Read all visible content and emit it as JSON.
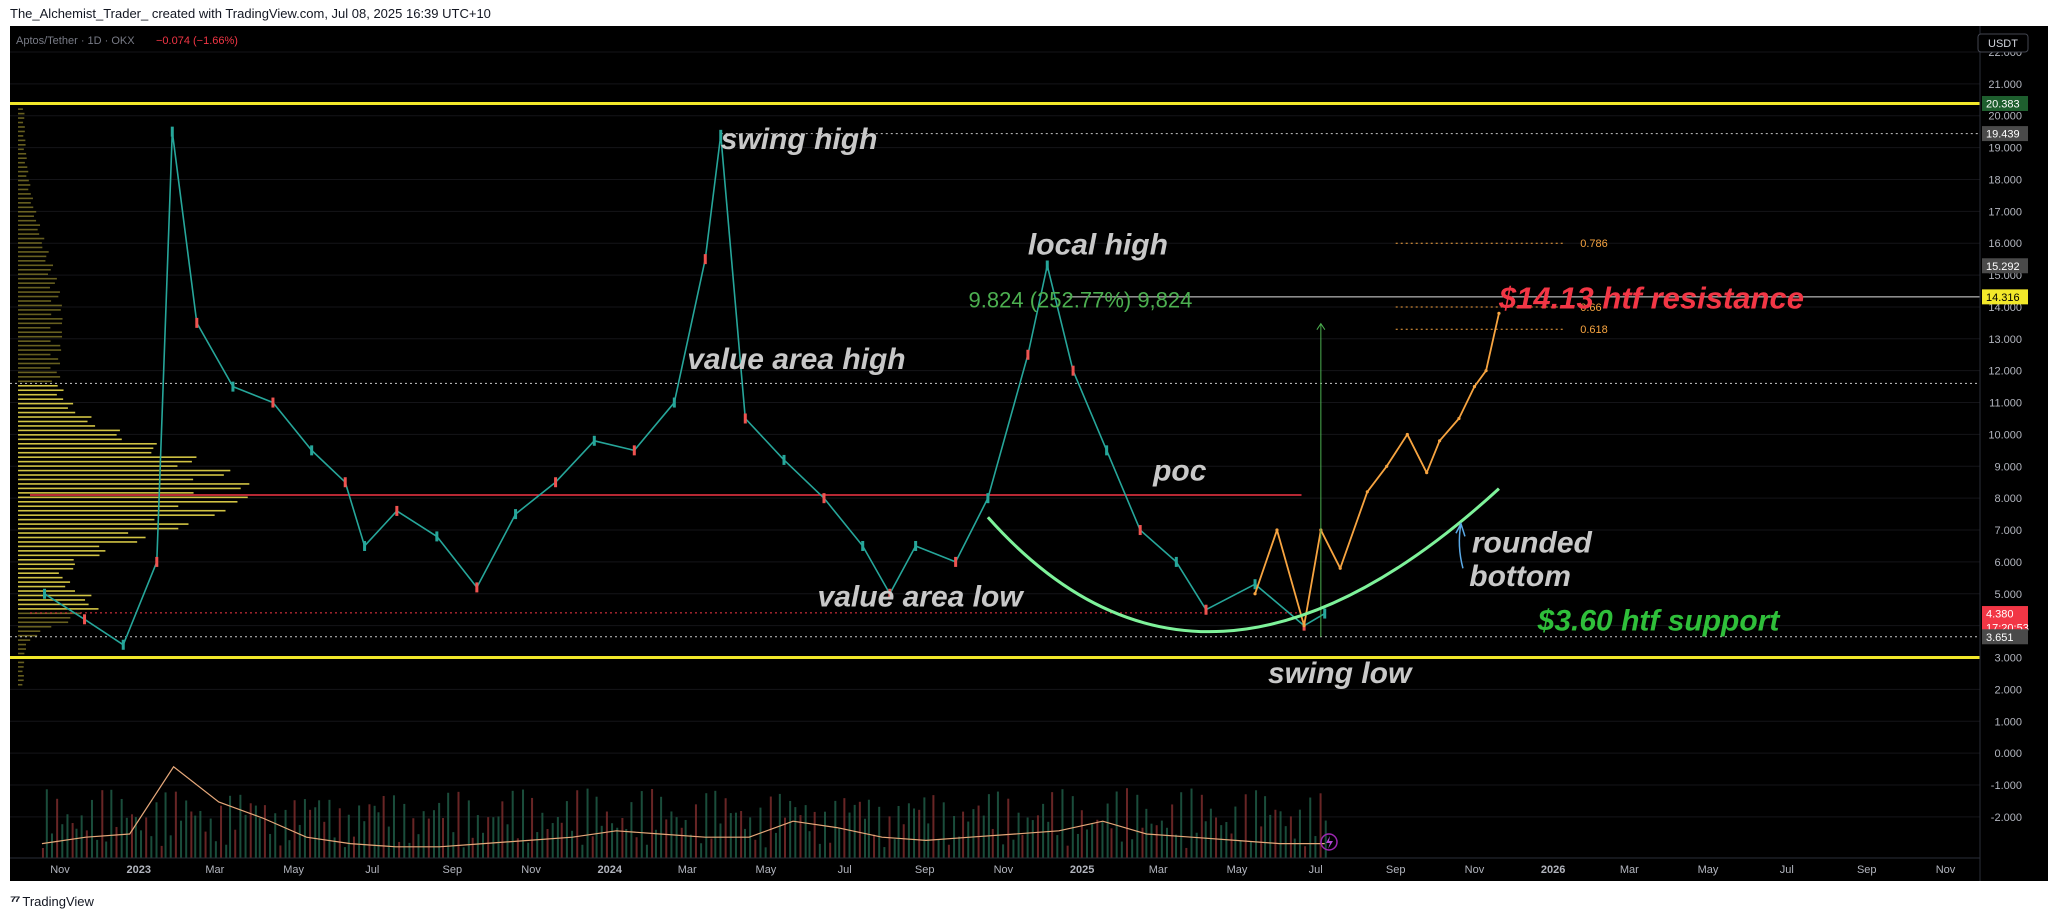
{
  "header": {
    "title": "The_Alchemist_Trader_ created with TradingView.com, Jul 08, 2025 16:39 UTC+10"
  },
  "symbol": {
    "name": "Aptos/Tether · 1D · OKX",
    "change": "−0.074 (−1.66%)"
  },
  "currency_button": "USDT",
  "footer": {
    "brand": "TradingView"
  },
  "colors": {
    "background": "#000000",
    "yellow": "#f2e82a",
    "red_line": "#f23645",
    "green_arc": "#7ef29a",
    "orange_projection": "#f7a440",
    "annotation_gray": "#c8c8c8",
    "resistance_red": "#f23645",
    "support_green": "#2fbf3a"
  },
  "chart_data": {
    "type": "line",
    "title": "Aptos/Tether · 1D · OKX",
    "ylim": [
      -2.6,
      23.0
    ],
    "x_axis_labels": [
      "Nov",
      "2023",
      "Mar",
      "May",
      "Jul",
      "Sep",
      "Nov",
      "2024",
      "Mar",
      "May",
      "Jul",
      "Sep",
      "Nov",
      "2025",
      "Mar",
      "May",
      "Jul",
      "Sep",
      "Nov",
      "2026",
      "Mar",
      "May",
      "Jul",
      "Sep",
      "Nov"
    ],
    "y_axis_labels": [
      "22.000",
      "21.000",
      "20.000",
      "19.000",
      "18.000",
      "17.000",
      "16.000",
      "15.000",
      "14.000",
      "13.000",
      "12.000",
      "11.000",
      "10.000",
      "9.000",
      "8.000",
      "7.000",
      "6.000",
      "5.000",
      "4.000",
      "3.000",
      "2.000",
      "1.000",
      "0.000",
      "-1.000",
      "-2.000"
    ],
    "price_tags": [
      {
        "value": "20.383",
        "color": "#1e5e2e"
      },
      {
        "value": "19.439",
        "color": "#4a4a4a"
      },
      {
        "value": "15.292",
        "color": "#4a4a4a"
      },
      {
        "value": "14.316",
        "color": "#f2e82a"
      },
      {
        "value": "4.380",
        "color": "#f23645"
      },
      {
        "value": "3.651",
        "color": "#4a4a4a"
      }
    ],
    "countdown": "17:20:53",
    "horizontal_levels": [
      {
        "price": 20.383,
        "style": "yellow-solid"
      },
      {
        "price": 19.439,
        "style": "white-dotted"
      },
      {
        "price": 14.316,
        "style": "white-solid"
      },
      {
        "price": 11.6,
        "style": "white-dotted"
      },
      {
        "price": 8.1,
        "style": "red-solid"
      },
      {
        "price": 4.4,
        "style": "red-dotted"
      },
      {
        "price": 3.651,
        "style": "white-dotted"
      },
      {
        "price": 3.0,
        "style": "yellow-solid"
      }
    ],
    "fib_levels": [
      {
        "label": "0.786",
        "price": 16.0
      },
      {
        "label": "0.66",
        "price": 14.0
      },
      {
        "label": "0.618",
        "price": 13.3
      }
    ],
    "series": [
      {
        "name": "",
        "color": "#26a69a",
        "x": [
          "2022-10-20",
          "2022-11-20",
          "2022-12-20",
          "2023-01-15",
          "2023-01-27",
          "2023-02-15",
          "2023-03-15",
          "2023-04-15",
          "2023-05-15",
          "2023-06-10",
          "2023-06-25",
          "2023-07-20",
          "2023-08-20",
          "2023-09-20",
          "2023-10-20",
          "2023-11-20",
          "2023-12-20",
          "2024-01-20",
          "2024-02-20",
          "2024-03-15",
          "2024-03-27",
          "2024-04-15",
          "2024-05-15",
          "2024-06-15",
          "2024-07-15",
          "2024-08-05",
          "2024-08-25",
          "2024-09-25",
          "2024-10-20",
          "2024-11-20",
          "2024-12-05",
          "2024-12-25",
          "2025-01-20",
          "2025-02-15",
          "2025-03-15",
          "2025-04-07",
          "2025-05-15",
          "2025-06-22",
          "2025-07-08"
        ],
        "values": [
          5.0,
          4.2,
          3.4,
          6.0,
          19.5,
          13.5,
          11.5,
          11.0,
          9.5,
          8.5,
          6.5,
          7.6,
          6.8,
          5.2,
          7.5,
          8.5,
          9.8,
          9.5,
          11.0,
          15.5,
          19.4,
          10.5,
          9.2,
          8.0,
          6.5,
          5.0,
          6.5,
          6.0,
          8.0,
          12.5,
          15.3,
          12.0,
          9.5,
          7.0,
          6.0,
          4.5,
          5.3,
          4.0,
          4.38
        ]
      },
      {
        "name": "",
        "color": "#f7a440",
        "x": [
          "2025-05-15",
          "2025-06-01",
          "2025-06-22",
          "2025-07-05",
          "2025-07-20",
          "2025-08-10",
          "2025-08-25",
          "2025-09-10",
          "2025-09-25",
          "2025-10-05",
          "2025-10-20",
          "2025-11-01",
          "2025-11-10",
          "2025-11-20"
        ],
        "values": [
          5.0,
          7.0,
          4.0,
          7.0,
          5.8,
          8.2,
          9.0,
          10.0,
          8.8,
          9.8,
          10.5,
          11.5,
          12.0,
          13.8
        ]
      }
    ],
    "volume_avg": [
      0.2,
      0.4,
      0.5,
      2.6,
      1.5,
      1.0,
      0.4,
      0.2,
      0.1,
      0.1,
      0.2,
      0.3,
      0.4,
      0.6,
      0.5,
      0.4,
      0.4,
      0.9,
      0.7,
      0.4,
      0.3,
      0.4,
      0.5,
      0.6,
      0.9,
      0.5,
      0.4,
      0.3,
      0.2,
      0.2
    ],
    "measure": {
      "label": "9.824 (252.77%) 9,824",
      "from": 3.651,
      "to": 13.475
    },
    "annotations": [
      {
        "id": "swing-high",
        "text": "swing high"
      },
      {
        "id": "local-high",
        "text": "local high"
      },
      {
        "id": "value-area-high",
        "text": "value area high"
      },
      {
        "id": "poc",
        "text": "poc"
      },
      {
        "id": "value-area-low",
        "text": "value area low"
      },
      {
        "id": "swing-low",
        "text": "swing low"
      },
      {
        "id": "rounded",
        "text": "rounded"
      },
      {
        "id": "bottom",
        "text": "bottom"
      },
      {
        "id": "resistance",
        "text": "$14.13 htf resistance"
      },
      {
        "id": "support",
        "text": "$3.60 htf support"
      }
    ]
  }
}
